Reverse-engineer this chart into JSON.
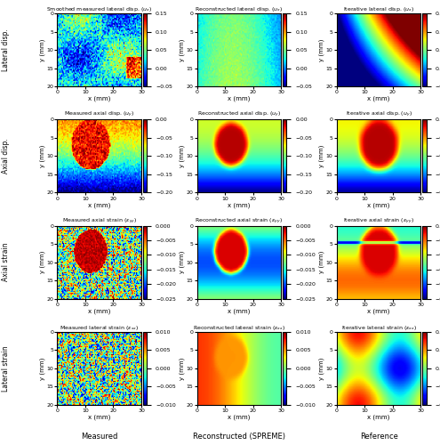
{
  "titles": [
    [
      "Smoothed measured lateral disp. (u_x)",
      "Reconstructed lateral disp. (u_x)",
      "Iterative lateral disp. (u_x)"
    ],
    [
      "Measured axial disp. (u_y)",
      "Reconstructed axial disp. (u_y)",
      "Iterative axial disp. (u_y)"
    ],
    [
      "Measured axial strain (ε_yy)",
      "Reconstructed axial strain (ε_yy)",
      "Iterative axial strain (ε_yy)"
    ],
    [
      "Measured lateral strain (ε_xx)",
      "Reconstructed lateral strain (ε_xx)",
      "Iterative lateral strain (ε_xx)"
    ]
  ],
  "title_subscripts": [
    [
      "Smoothed measured lateral disp. ($u_x$)",
      "Reconstructed lateral disp. ($u_x$)",
      "Iterative lateral disp. ($u_x$)"
    ],
    [
      "Measured axial disp. ($u_y$)",
      "Reconstructed axial disp. ($u_y$)",
      "Iterative axial disp. ($u_y$)"
    ],
    [
      "Measured axial strain ($\\varepsilon_{yy}$)",
      "Reconstructed axial strain ($\\varepsilon_{yy}$)",
      "Iterative axial strain ($\\varepsilon_{yy}$)"
    ],
    [
      "Measured lateral strain ($\\varepsilon_{xx}$)",
      "Reconstructed lateral strain ($\\varepsilon_{xx}$)",
      "Iterative lateral strain ($\\varepsilon_{xx}$)"
    ]
  ],
  "row_labels": [
    "Lateral disp.",
    "Axial disp.",
    "Axial strain",
    "Lateral strain"
  ],
  "col_labels": [
    "Measured",
    "Reconstructed (SPREME)",
    "Reference"
  ],
  "clim_rows": [
    [
      -0.05,
      0.15
    ],
    [
      -0.2,
      0
    ],
    [
      -0.025,
      0
    ],
    [
      -0.01,
      0.01
    ]
  ],
  "colormap": "jet",
  "xlabel": "x (mm)",
  "ylabel": "y (mm)",
  "xlim": [
    0,
    30
  ],
  "ylim": [
    0,
    20
  ],
  "xticks": [
    0,
    10,
    20,
    30
  ],
  "yticks": [
    0,
    5,
    10,
    15,
    20
  ],
  "seed": 42,
  "figsize": [
    4.95,
    5.0
  ],
  "dpi": 100
}
